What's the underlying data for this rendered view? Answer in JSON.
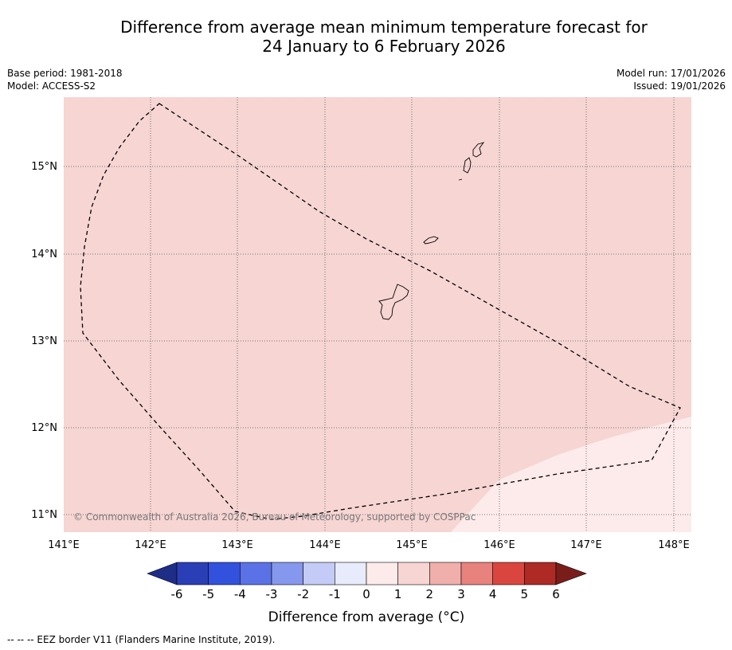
{
  "header": {
    "title_line1": "Difference from average mean minimum temperature forecast for",
    "title_line2": "24 January to 6 February 2026",
    "base_period": "Base period: 1981-2018",
    "model": "Model: ACCESS-S2",
    "model_run": "Model run: 17/01/2026",
    "issued": "Issued: 19/01/2026"
  },
  "map": {
    "lon_labels": [
      "141°E",
      "142°E",
      "143°E",
      "144°E",
      "145°E",
      "146°E",
      "147°E",
      "148°E"
    ],
    "lat_labels": [
      "15°N",
      "14°N",
      "13°N",
      "12°N",
      "11°N"
    ],
    "copyright": "© Commonwealth of Australia 2026, Bureau of Meteorology, supported by COSPPac",
    "colors": {
      "main_anomaly": "#f6d5d3",
      "low_anomaly": "#fcebea"
    }
  },
  "colorbar": {
    "tick_labels": [
      "-6",
      "-5",
      "-4",
      "-3",
      "-2",
      "-1",
      "0",
      "1",
      "2",
      "3",
      "4",
      "5",
      "6"
    ],
    "colors": [
      "#1e2d85",
      "#2a3fb6",
      "#3252de",
      "#5b72e6",
      "#8598ee",
      "#c3cbf6",
      "#e7ebfc",
      "#fcebea",
      "#f6d5d3",
      "#f0afab",
      "#e8827c",
      "#da463f",
      "#ae2a24",
      "#7a1d1a"
    ],
    "label": "Difference from average (°C)"
  },
  "footer": {
    "eez_note": "--  --  -- EEZ border V11 (Flanders Marine Institute, 2019)."
  }
}
